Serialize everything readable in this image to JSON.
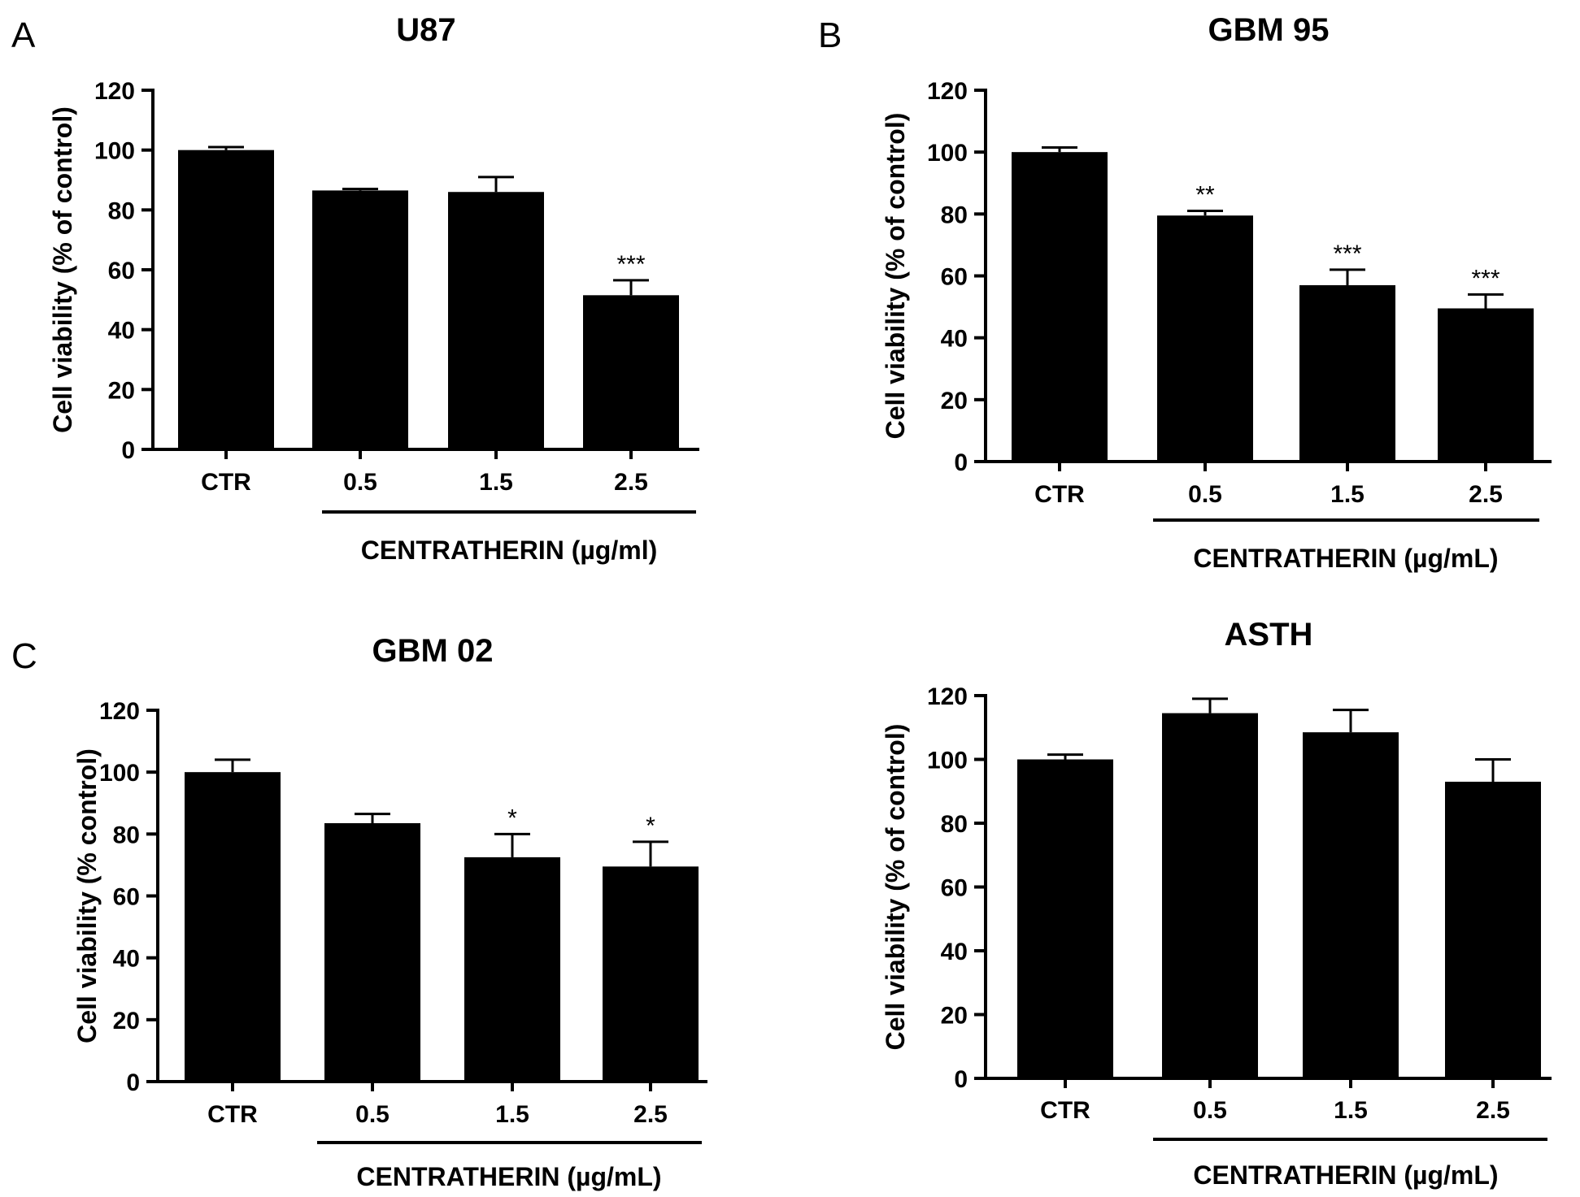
{
  "colors": {
    "bar": "#000000",
    "axis": "#000000",
    "background": "#ffffff"
  },
  "chart_data": [
    {
      "panel": "A",
      "type": "bar",
      "title": "U87",
      "ylabel": "Cell viability (% of control)",
      "xlabel": "CENTRATHERIN (µg/ml)",
      "categories": [
        "CTR",
        "0.5",
        "1.5",
        "2.5"
      ],
      "values": [
        100,
        86.5,
        86,
        51.5
      ],
      "errors": [
        1,
        0.5,
        5,
        5
      ],
      "significance": [
        "",
        "",
        "",
        "***"
      ],
      "ylim": [
        0,
        120
      ],
      "yticks": [
        "0",
        "20",
        "40",
        "60",
        "80",
        "100",
        "120"
      ],
      "grid": false
    },
    {
      "panel": "B",
      "type": "bar",
      "title": "GBM 95",
      "ylabel": "Cell viability (% of control)",
      "xlabel": "CENTRATHERIN (µg/mL)",
      "categories": [
        "CTR",
        "0.5",
        "1.5",
        "2.5"
      ],
      "values": [
        100,
        79.5,
        57,
        49.5
      ],
      "errors": [
        1.5,
        1.5,
        5,
        4.5
      ],
      "significance": [
        "",
        "**",
        "***",
        "***"
      ],
      "ylim": [
        0,
        120
      ],
      "yticks": [
        "0",
        "20",
        "40",
        "60",
        "80",
        "100",
        "120"
      ],
      "grid": false
    },
    {
      "panel": "C",
      "type": "bar",
      "title": "GBM 02",
      "ylabel": "Cell viability (% control)",
      "xlabel": "CENTRATHERIN (µg/mL)",
      "categories": [
        "CTR",
        "0.5",
        "1.5",
        "2.5"
      ],
      "values": [
        100,
        83.5,
        72.5,
        69.5
      ],
      "errors": [
        4,
        3,
        7.5,
        8
      ],
      "significance": [
        "",
        "",
        "*",
        "*"
      ],
      "ylim": [
        0,
        120
      ],
      "yticks": [
        "0",
        "20",
        "40",
        "60",
        "80",
        "100",
        "120"
      ],
      "grid": false
    },
    {
      "panel": "",
      "type": "bar",
      "title": "ASTH",
      "ylabel": "Cell viability (% of control)",
      "xlabel": "CENTRATHERIN (µg/mL)",
      "categories": [
        "CTR",
        "0.5",
        "1.5",
        "2.5"
      ],
      "values": [
        100,
        114.5,
        108.5,
        93
      ],
      "errors": [
        1.5,
        4.5,
        7,
        7
      ],
      "significance": [
        "",
        "",
        "",
        ""
      ],
      "ylim": [
        0,
        120
      ],
      "yticks": [
        "0",
        "20",
        "40",
        "60",
        "80",
        "100",
        "120"
      ],
      "grid": false
    }
  ]
}
